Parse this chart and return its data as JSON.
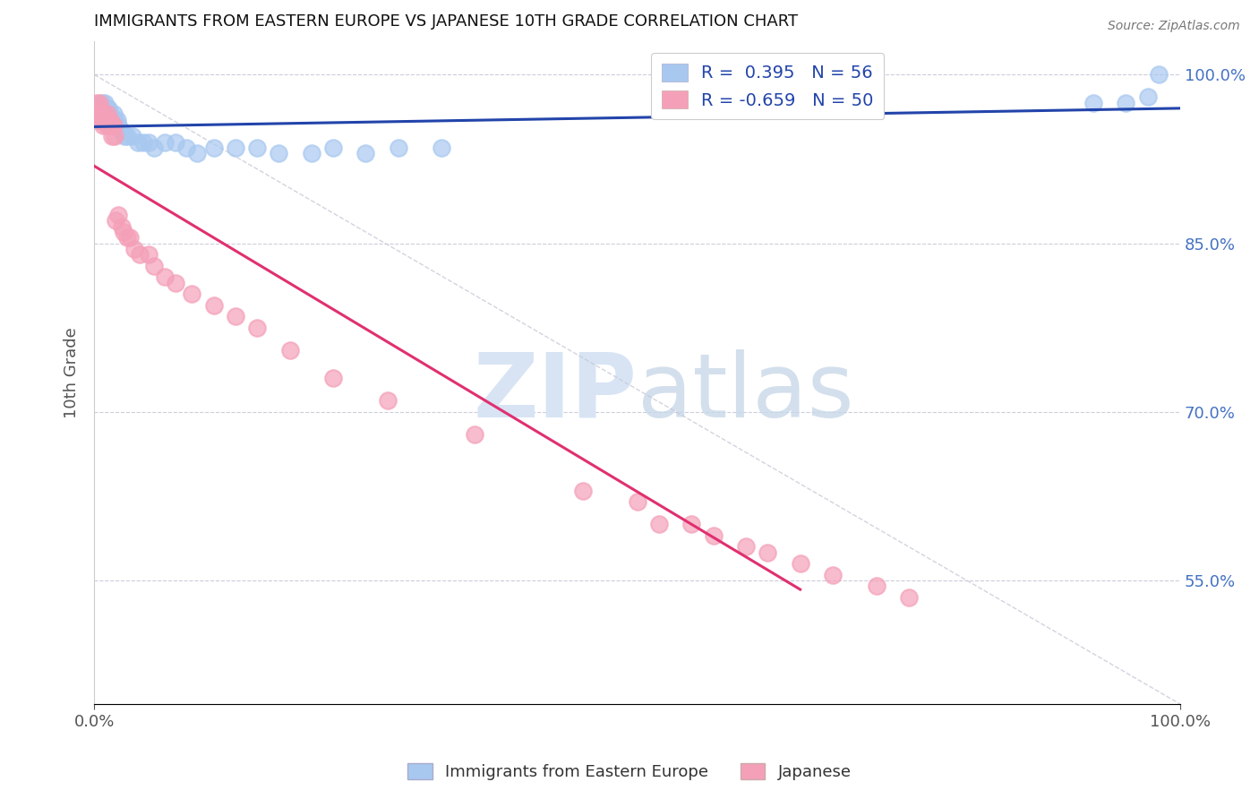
{
  "title": "IMMIGRANTS FROM EASTERN EUROPE VS JAPANESE 10TH GRADE CORRELATION CHART",
  "source": "Source: ZipAtlas.com",
  "ylabel": "10th Grade",
  "xlim": [
    0.0,
    1.0
  ],
  "ylim": [
    0.44,
    1.03
  ],
  "ytick_values": [
    0.55,
    0.7,
    0.85,
    1.0
  ],
  "xtick_labels": [
    "0.0%",
    "100.0%"
  ],
  "xtick_values": [
    0.0,
    1.0
  ],
  "right_ytick_labels": [
    "55.0%",
    "70.0%",
    "85.0%",
    "100.0%"
  ],
  "right_ytick_values": [
    0.55,
    0.7,
    0.85,
    1.0
  ],
  "legend_R_blue": "0.395",
  "legend_N_blue": "56",
  "legend_R_pink": "-0.659",
  "legend_N_pink": "50",
  "blue_color": "#A8C8F0",
  "pink_color": "#F4A0B8",
  "trend_blue_color": "#2244AA",
  "trend_pink_color": "#E03070",
  "diagonal_color": "#C8C8D8",
  "background_color": "#FFFFFF",
  "watermark_color": "#D8E4F4",
  "blue_x": [
    0.002,
    0.003,
    0.004,
    0.005,
    0.005,
    0.006,
    0.007,
    0.007,
    0.008,
    0.008,
    0.009,
    0.009,
    0.01,
    0.01,
    0.01,
    0.011,
    0.011,
    0.012,
    0.012,
    0.013,
    0.013,
    0.014,
    0.015,
    0.015,
    0.016,
    0.017,
    0.018,
    0.019,
    0.02,
    0.021,
    0.022,
    0.025,
    0.028,
    0.03,
    0.035,
    0.04,
    0.045,
    0.05,
    0.055,
    0.065,
    0.075,
    0.085,
    0.095,
    0.11,
    0.13,
    0.15,
    0.17,
    0.2,
    0.22,
    0.25,
    0.28,
    0.32,
    0.92,
    0.95,
    0.97,
    0.98
  ],
  "blue_y": [
    0.96,
    0.965,
    0.97,
    0.96,
    0.97,
    0.965,
    0.97,
    0.975,
    0.965,
    0.97,
    0.965,
    0.96,
    0.965,
    0.97,
    0.975,
    0.96,
    0.965,
    0.965,
    0.97,
    0.965,
    0.97,
    0.965,
    0.96,
    0.965,
    0.96,
    0.955,
    0.965,
    0.96,
    0.955,
    0.96,
    0.955,
    0.95,
    0.945,
    0.945,
    0.945,
    0.94,
    0.94,
    0.94,
    0.935,
    0.94,
    0.94,
    0.935,
    0.93,
    0.935,
    0.935,
    0.935,
    0.93,
    0.93,
    0.935,
    0.93,
    0.935,
    0.935,
    0.975,
    0.975,
    0.98,
    1.0
  ],
  "pink_x": [
    0.002,
    0.003,
    0.004,
    0.005,
    0.005,
    0.006,
    0.007,
    0.008,
    0.009,
    0.01,
    0.011,
    0.012,
    0.013,
    0.014,
    0.015,
    0.016,
    0.017,
    0.018,
    0.019,
    0.02,
    0.022,
    0.025,
    0.027,
    0.03,
    0.033,
    0.037,
    0.042,
    0.05,
    0.055,
    0.065,
    0.075,
    0.09,
    0.11,
    0.13,
    0.15,
    0.18,
    0.22,
    0.27,
    0.35,
    0.45,
    0.5,
    0.52,
    0.55,
    0.57,
    0.6,
    0.62,
    0.65,
    0.68,
    0.72,
    0.75
  ],
  "pink_y": [
    0.975,
    0.965,
    0.96,
    0.97,
    0.975,
    0.965,
    0.96,
    0.955,
    0.965,
    0.96,
    0.955,
    0.965,
    0.96,
    0.955,
    0.96,
    0.945,
    0.955,
    0.955,
    0.945,
    0.87,
    0.875,
    0.865,
    0.86,
    0.855,
    0.855,
    0.845,
    0.84,
    0.84,
    0.83,
    0.82,
    0.815,
    0.805,
    0.795,
    0.785,
    0.775,
    0.755,
    0.73,
    0.71,
    0.68,
    0.63,
    0.62,
    0.6,
    0.6,
    0.59,
    0.58,
    0.575,
    0.565,
    0.555,
    0.545,
    0.535
  ]
}
